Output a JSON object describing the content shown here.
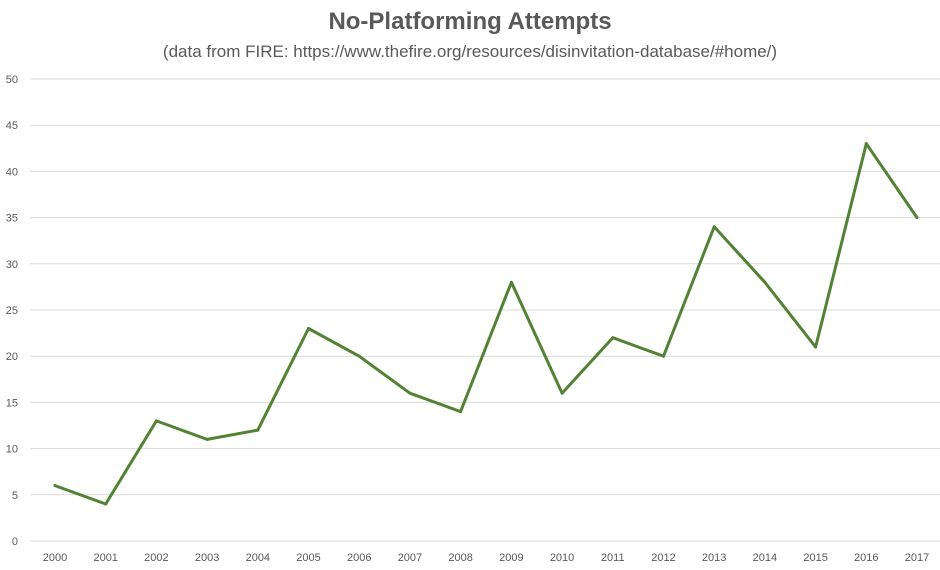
{
  "chart_data": {
    "type": "line",
    "title": "No-Platforming Attempts",
    "subtitle": "(data from FIRE: https://www.thefire.org/resources/disinvitation-database/#home/)",
    "xlabel": "",
    "ylabel": "",
    "categories": [
      "2000",
      "2001",
      "2002",
      "2003",
      "2004",
      "2005",
      "2006",
      "2007",
      "2008",
      "2009",
      "2010",
      "2011",
      "2012",
      "2013",
      "2014",
      "2015",
      "2016",
      "2017"
    ],
    "series": [
      {
        "values": [
          6,
          4,
          13,
          11,
          12,
          23,
          20,
          16,
          14,
          28,
          16,
          22,
          20,
          34,
          28,
          21,
          43,
          35
        ],
        "color": "#548235"
      }
    ],
    "ylim": [
      0,
      50
    ],
    "yticks": [
      "0",
      "5",
      "10",
      "15",
      "20",
      "25",
      "30",
      "35",
      "40",
      "45",
      "50"
    ],
    "grid": true,
    "legend": "none",
    "gridline_color": "#d9d9d9",
    "text_color": "#595959"
  }
}
